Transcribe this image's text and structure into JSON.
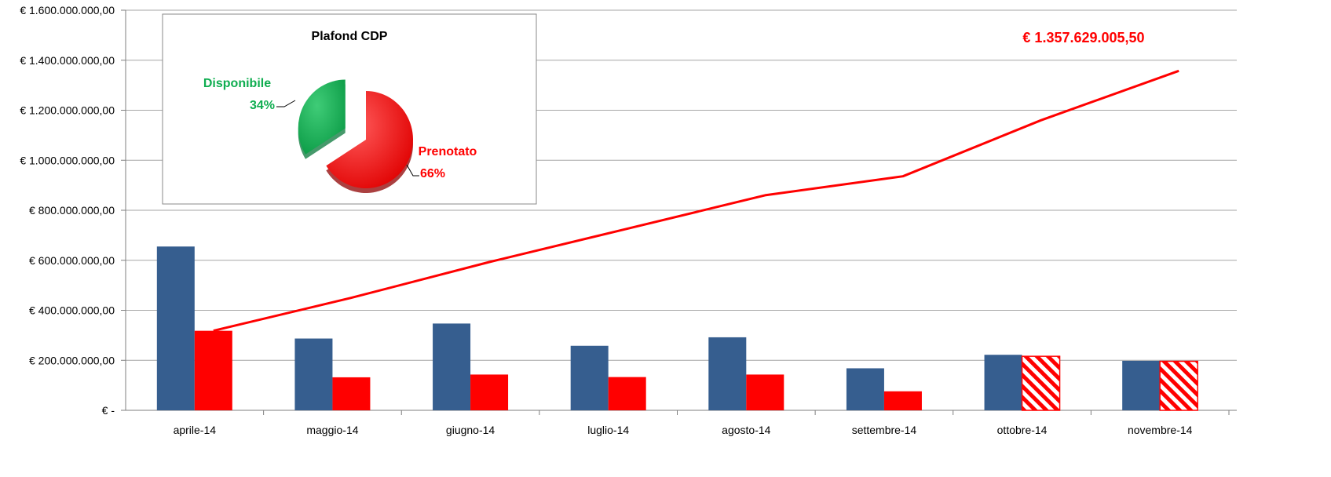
{
  "chart_data": [
    {
      "type": "bar",
      "categories": [
        "aprile-14",
        "maggio-14",
        "giugno-14",
        "luglio-14",
        "agosto-14",
        "settembre-14",
        "ottobre-14",
        "novembre-14"
      ],
      "series": [
        {
          "kind": "bar",
          "color": "#365e8f",
          "values": [
            655000000,
            287000000,
            347000000,
            258000000,
            292000000,
            168000000,
            222000000,
            198000000
          ]
        },
        {
          "kind": "bar",
          "color": "#ff0000",
          "hatched_from_index": 6,
          "values": [
            318000000,
            132000000,
            143000000,
            133000000,
            143000000,
            76000000,
            216000000,
            196000000
          ]
        },
        {
          "kind": "line",
          "color": "#ff0000",
          "values": [
            318000000,
            450000000,
            593000000,
            726000000,
            860000000,
            936000000,
            1160000000,
            1357629005.5
          ]
        }
      ],
      "ylim": [
        0,
        1600000000
      ],
      "yticks": [
        0,
        200000000,
        400000000,
        600000000,
        800000000,
        1000000000,
        1200000000,
        1400000000,
        1600000000
      ],
      "ytick_labels": [
        "€ -",
        "€ 200.000.000,00",
        "€ 400.000.000,00",
        "€ 600.000.000,00",
        "€ 800.000.000,00",
        "€ 1.000.000.000,00",
        "€ 1.200.000.000,00",
        "€ 1.400.000.000,00",
        "€ 1.600.000.000,00"
      ],
      "grid": true,
      "annotation": "€ 1.357.629.005,50",
      "annotation_color": "#ff0000"
    },
    {
      "type": "pie",
      "title": "Plafond CDP",
      "slices": [
        {
          "label": "Disponibile",
          "value": 34,
          "pct_label": "34%",
          "color": "#0fad50",
          "exploded": true
        },
        {
          "label": "Prenotato",
          "value": 66,
          "pct_label": "66%",
          "color": "#ff0000",
          "exploded": false
        }
      ]
    }
  ]
}
